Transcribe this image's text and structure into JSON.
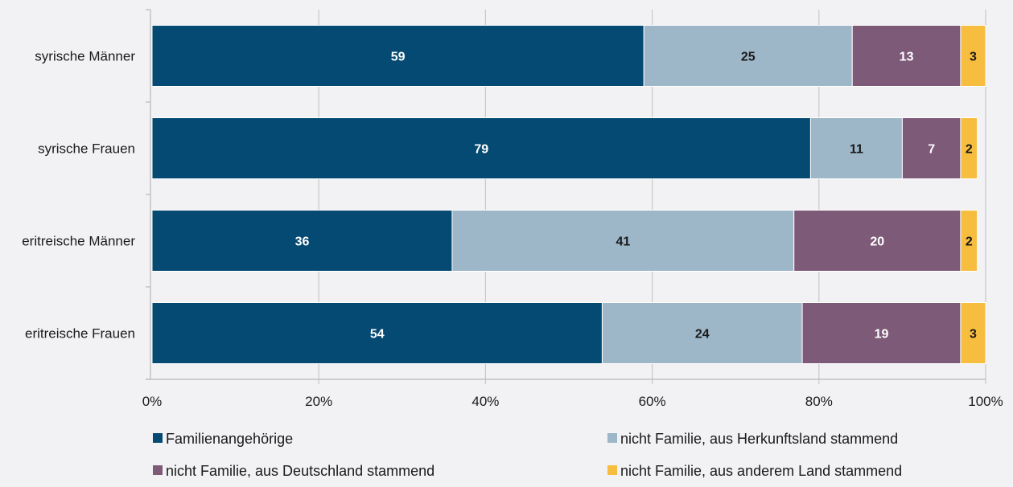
{
  "chart_data": {
    "type": "bar",
    "orientation": "horizontal",
    "stacked": true,
    "categories": [
      "syrische Männer",
      "syrische Frauen",
      "eritreische Männer",
      "eritreische Frauen"
    ],
    "series": [
      {
        "name": "Familienangehörige",
        "color": "#054a72",
        "label_color": "#ffffff",
        "values": [
          59,
          79,
          36,
          54
        ]
      },
      {
        "name": "nicht Familie, aus Herkunftsland stammend",
        "color": "#9db6c8",
        "label_color": "#1a1a1a",
        "values": [
          25,
          11,
          41,
          24
        ]
      },
      {
        "name": "nicht Familie, aus Deutschland stammend",
        "color": "#7e5a79",
        "label_color": "#ffffff",
        "values": [
          13,
          7,
          20,
          19
        ]
      },
      {
        "name": "nicht Familie, aus anderem Land stammend",
        "color": "#f6bd3f",
        "label_color": "#1a1a1a",
        "values": [
          3,
          2,
          2,
          3
        ]
      }
    ],
    "xlim": [
      0,
      100
    ],
    "xticks": [
      "0%",
      "20%",
      "40%",
      "60%",
      "80%",
      "100%"
    ],
    "grid": true,
    "legend_position": "bottom"
  }
}
